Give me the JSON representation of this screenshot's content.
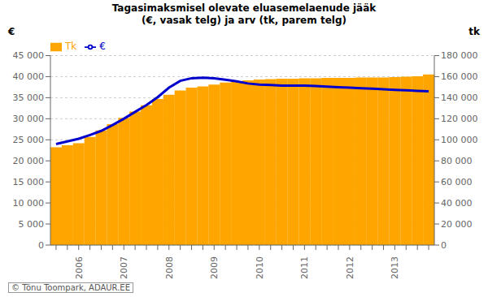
{
  "chart_data": {
    "type": "bar",
    "title": "Tagasimaksmisel olevate eluasemelaenude jääk",
    "subtitle": "(€, vasak telg) ja arv (tk, parem telg)",
    "ylabel": "€",
    "y2label": "tk",
    "annotations": [
      "© Tõnu Toompark, ADAUR.EE"
    ],
    "categories": [
      null,
      null,
      "2006",
      null,
      null,
      null,
      "2007",
      null,
      null,
      null,
      "2008",
      null,
      null,
      null,
      "2009",
      null,
      null,
      null,
      "2010",
      null,
      null,
      null,
      "2011",
      null,
      null,
      null,
      "2012",
      null,
      null,
      null,
      "2013",
      null,
      null,
      null
    ],
    "series": [
      {
        "name": "Tk",
        "type": "bar",
        "color": "#FFA500",
        "values": [
          23200,
          23700,
          24200,
          25700,
          27200,
          28700,
          30200,
          31700,
          33200,
          34700,
          35700,
          36700,
          37400,
          37700,
          38100,
          38600,
          38900,
          39100,
          39300,
          39400,
          39500,
          39500,
          39600,
          39600,
          39700,
          39700,
          39700,
          39800,
          39800,
          39800,
          39900,
          40000,
          40100,
          40500
        ]
      },
      {
        "name": "€",
        "type": "line",
        "color": "#0000CC",
        "axis": "y2",
        "values": [
          96000,
          98500,
          101000,
          104500,
          108500,
          114000,
          120000,
          126500,
          133000,
          140500,
          149500,
          156000,
          158500,
          159000,
          158500,
          157000,
          155500,
          153500,
          152500,
          152000,
          151500,
          151500,
          151500,
          151000,
          150500,
          150000,
          149500,
          149000,
          148500,
          148000,
          147500,
          147000,
          146500,
          146000
        ]
      }
    ],
    "ylim": [
      0,
      45000
    ],
    "yticks": [
      0,
      {
        "value": 5000,
        "label": "5 000"
      },
      {
        "value": 10000,
        "label": "10 000"
      },
      {
        "value": 15000,
        "label": "15 000"
      },
      {
        "value": 20000,
        "label": "20 000"
      },
      {
        "value": 25000,
        "label": "25 000"
      },
      {
        "value": 30000,
        "label": "30 000"
      },
      {
        "value": 35000,
        "label": "35 000"
      },
      {
        "value": 40000,
        "label": "40 000"
      },
      {
        "value": 45000,
        "label": "45 000"
      }
    ],
    "y2lim": [
      0,
      180000
    ],
    "y2ticks": [
      0,
      {
        "value": 20000,
        "label": "20 000"
      },
      {
        "value": 40000,
        "label": "40 000"
      },
      {
        "value": 60000,
        "label": "60 000"
      },
      {
        "value": 80000,
        "label": "80 000"
      },
      {
        "value": 100000,
        "label": "100 000"
      },
      {
        "value": 120000,
        "label": "120 000"
      },
      {
        "value": 140000,
        "label": "140 000"
      },
      {
        "value": 160000,
        "label": "160 000"
      },
      {
        "value": 180000,
        "label": "180 000"
      }
    ],
    "grid": true,
    "legend": "upper left"
  }
}
